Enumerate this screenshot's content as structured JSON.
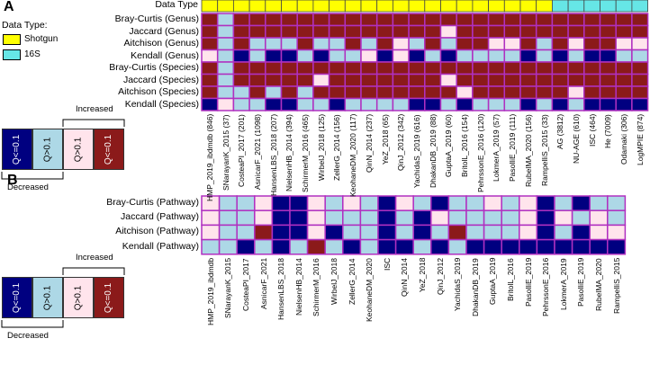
{
  "colors": {
    "shotgun": "#ffff00",
    "s16": "#66e6e6",
    "dark_blue": "#000080",
    "light_blue": "#add8e6",
    "light_pink": "#ffe4ec",
    "dark_red": "#8b1a1a",
    "grid": "#b030c0"
  },
  "panelA": {
    "label": "A",
    "data_type_label": "Data Type",
    "legend_title": "Data Type:",
    "legend_items": [
      "Shotgun",
      "16S"
    ],
    "rows": [
      "Bray-Curtis (Genus)",
      "Jaccard (Genus)",
      "Aitchison (Genus)",
      "Kendall (Genus)",
      "Bray-Curtis (Species)",
      "Jaccard (Species)",
      "Aitchison (Species)",
      "Kendall (Species)"
    ],
    "columns": [
      "HMP_2019_ibdmdb (846)",
      "SNarayanK_2015 (37)",
      "CosteaPI_2017 (201)",
      "AsnicarF_2021 (1098)",
      "HansenLBS_2018 (207)",
      "NielsenHB_2014 (394)",
      "SchirmerM_2016 (465)",
      "WirbelJ_2018 (125)",
      "ZellerG_2014 (156)",
      "KeohaneDM_2020 (117)",
      "QinN_2014 (237)",
      "YeZ_2018 (65)",
      "QinJ_2012 (342)",
      "YachidaS_2019 (616)",
      "DhakanDB_2019 (88)",
      "GuptaA_2019 (60)",
      "BritolL_2016 (154)",
      "PehrssonE_2016 (120)",
      "LokmerA_2019 (57)",
      "PasolliE_2019 (111)",
      "RubelMA_2020 (156)",
      "RampelliS_2015 (33)",
      "AG (3812)",
      "NU-AGE (610)",
      "ISC (464)",
      "He (7009)",
      "Odamaki (306)",
      "LogMPIE (874)"
    ],
    "data_type": [
      "S",
      "S",
      "S",
      "S",
      "S",
      "S",
      "S",
      "S",
      "S",
      "S",
      "S",
      "S",
      "S",
      "S",
      "S",
      "S",
      "S",
      "S",
      "S",
      "S",
      "S",
      "S",
      "16S",
      "16S",
      "16S",
      "16S",
      "16S",
      "16S"
    ],
    "cells": [
      [
        4,
        2,
        4,
        4,
        4,
        4,
        4,
        4,
        4,
        4,
        4,
        4,
        4,
        4,
        4,
        4,
        4,
        4,
        4,
        4,
        4,
        4,
        4,
        4,
        4,
        4,
        4,
        4
      ],
      [
        4,
        2,
        4,
        4,
        4,
        4,
        4,
        4,
        4,
        4,
        4,
        4,
        4,
        4,
        4,
        3,
        4,
        4,
        4,
        4,
        4,
        4,
        4,
        4,
        4,
        4,
        4,
        4
      ],
      [
        4,
        2,
        4,
        2,
        2,
        2,
        4,
        2,
        2,
        4,
        2,
        4,
        3,
        2,
        4,
        2,
        4,
        4,
        3,
        3,
        4,
        2,
        4,
        3,
        4,
        4,
        3,
        3
      ],
      [
        3,
        2,
        1,
        2,
        1,
        1,
        2,
        1,
        2,
        2,
        3,
        1,
        3,
        1,
        2,
        1,
        2,
        2,
        2,
        2,
        1,
        2,
        1,
        2,
        1,
        1,
        2,
        2
      ],
      [
        4,
        2,
        4,
        4,
        4,
        4,
        4,
        4,
        4,
        4,
        4,
        4,
        4,
        4,
        4,
        4,
        4,
        4,
        4,
        4,
        4,
        4,
        4,
        4,
        4,
        4,
        4,
        4
      ],
      [
        4,
        2,
        4,
        4,
        4,
        4,
        4,
        3,
        4,
        4,
        4,
        4,
        4,
        4,
        4,
        3,
        4,
        4,
        4,
        4,
        4,
        4,
        4,
        4,
        4,
        4,
        4,
        4
      ],
      [
        4,
        2,
        2,
        4,
        2,
        4,
        2,
        4,
        4,
        4,
        4,
        4,
        4,
        4,
        4,
        4,
        3,
        4,
        4,
        4,
        4,
        4,
        4,
        3,
        4,
        4,
        4,
        4
      ],
      [
        1,
        3,
        2,
        2,
        1,
        1,
        2,
        2,
        1,
        2,
        2,
        2,
        2,
        1,
        1,
        2,
        1,
        2,
        2,
        2,
        1,
        2,
        1,
        2,
        1,
        1,
        1,
        1
      ]
    ]
  },
  "panelB": {
    "label": "B",
    "rows": [
      "Bray-Curtis (Pathway)",
      "Jaccard (Pathway)",
      "Aitchison (Pathway)",
      "Kendall (Pathway)"
    ],
    "columns": [
      "HMP_2019_ibdmdb",
      "SNarayanK_2015",
      "CosteaPI_2017",
      "AsnicarF_2021",
      "HansenLBS_2018",
      "NielsenHB_2014",
      "SchirmerM_2016",
      "WirbelJ_2018",
      "ZellerG_2014",
      "KeohaneDM_2020",
      "ISC",
      "QinN_2014",
      "YeZ_2018",
      "QinJ_2012",
      "YachidaS_2019",
      "DhakanDB_2019",
      "GuptaA_2019",
      "BritolL_2016",
      "PasolliE_2019",
      "PehrssonE_2016",
      "LokmerA_2019",
      "PasolliE_2019",
      "RubelMA_2020",
      "RampelliS_2015"
    ],
    "cells": [
      [
        3,
        2,
        2,
        3,
        1,
        1,
        3,
        2,
        3,
        2,
        1,
        3,
        2,
        1,
        2,
        2,
        3,
        2,
        3,
        1,
        2,
        1,
        2,
        2
      ],
      [
        3,
        2,
        2,
        3,
        1,
        1,
        3,
        2,
        2,
        2,
        1,
        2,
        1,
        3,
        2,
        2,
        2,
        2,
        3,
        1,
        3,
        2,
        3,
        2
      ],
      [
        3,
        2,
        2,
        4,
        1,
        1,
        3,
        1,
        2,
        2,
        1,
        2,
        1,
        2,
        4,
        2,
        2,
        2,
        3,
        1,
        2,
        1,
        3,
        3
      ],
      [
        2,
        2,
        1,
        2,
        1,
        2,
        4,
        2,
        1,
        2,
        1,
        1,
        2,
        1,
        2,
        1,
        1,
        1,
        1,
        1,
        1,
        1,
        1,
        1
      ]
    ]
  },
  "scale_legend": {
    "boxes": [
      "Q<=0.1",
      "Q>0.1",
      "Q>0.1",
      "Q<=0.1"
    ],
    "increased_label": "Increased",
    "decreased_label": "Decreased"
  }
}
